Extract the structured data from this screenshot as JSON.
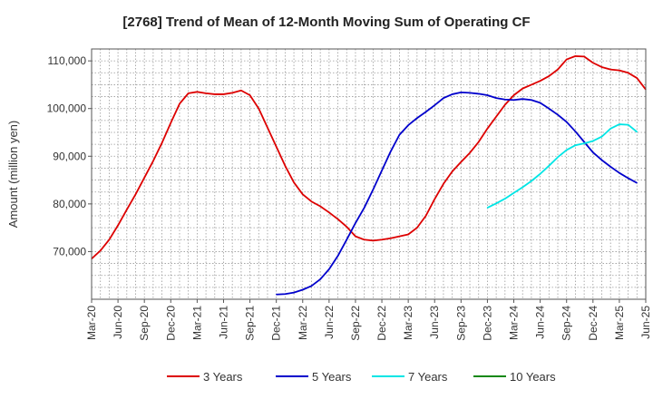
{
  "chart_data": {
    "type": "line",
    "title": "[2768]  Trend of Mean of 12-Month Moving Sum of Operating CF",
    "xlabel": "",
    "ylabel": "Amount (million yen)",
    "ylim": [
      60000,
      112500
    ],
    "y_ticks": [
      70000,
      80000,
      90000,
      100000,
      110000
    ],
    "y_tick_labels": [
      "70,000",
      "80,000",
      "90,000",
      "100,000",
      "110,000"
    ],
    "x_tick_labels": [
      "Mar-20",
      "Jun-20",
      "Sep-20",
      "Dec-20",
      "Mar-21",
      "Jun-21",
      "Sep-21",
      "Dec-21",
      "Mar-22",
      "Jun-22",
      "Sep-22",
      "Dec-22",
      "Mar-23",
      "Jun-23",
      "Sep-23",
      "Dec-23",
      "Mar-24",
      "Jun-24",
      "Sep-24",
      "Dec-24",
      "Mar-25",
      "Jun-25"
    ],
    "x_start": "Mar-20",
    "x_unit": "months since Mar-20",
    "grid": true,
    "legend_position": "bottom",
    "series": [
      {
        "name": "3 Years",
        "color": "#dd0000",
        "start_month": 0,
        "values": [
          68500,
          70200,
          72500,
          75500,
          78800,
          82000,
          85500,
          89000,
          92800,
          97000,
          101000,
          103200,
          103500,
          103200,
          103000,
          103000,
          103300,
          103800,
          102800,
          100000,
          96000,
          92000,
          88000,
          84500,
          82000,
          80500,
          79500,
          78200,
          76800,
          75200,
          73200,
          72500,
          72300,
          72500,
          72800,
          73200,
          73600,
          75000,
          77500,
          81000,
          84200,
          86800,
          88800,
          90700,
          93000,
          95800,
          98300,
          100800,
          102800,
          104200,
          105000,
          105800,
          106800,
          108200,
          110300,
          111000,
          110900,
          109600,
          108700,
          108200,
          108000,
          107500,
          106400,
          104000
        ]
      },
      {
        "name": "5 Years",
        "color": "#0000cc",
        "start_month": 21,
        "values": [
          61000,
          61100,
          61400,
          62000,
          62800,
          64200,
          66300,
          69100,
          72500,
          76000,
          79200,
          83000,
          87000,
          91000,
          94500,
          96500,
          98000,
          99300,
          100700,
          102200,
          103000,
          103400,
          103300,
          103100,
          102800,
          102200,
          101900,
          101800,
          102000,
          101800,
          101200,
          100000,
          98700,
          97200,
          95200,
          93000,
          90800,
          89200,
          87800,
          86500,
          85400,
          84400
        ]
      },
      {
        "name": "7 Years",
        "color": "#00e5e5",
        "start_month": 45,
        "values": [
          79200,
          80100,
          81100,
          82300,
          83500,
          84800,
          86300,
          88000,
          89800,
          91300,
          92300,
          92700,
          93200,
          94100,
          95800,
          96700,
          96600,
          95100
        ]
      },
      {
        "name": "10 Years",
        "color": "#118811",
        "start_month": 0,
        "values": []
      }
    ]
  }
}
